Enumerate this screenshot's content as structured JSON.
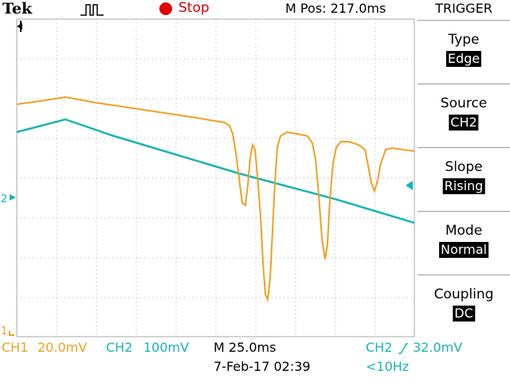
{
  "header": {
    "brand": "Tek",
    "acquisition_icon": "pulse-waveform-icon",
    "run_state": "Stop",
    "horizontal_position": "M Pos: 217.0ms"
  },
  "screen": {
    "trigger_position_icon": "trigger-position-arrow-icon",
    "ch1_marker": "1",
    "ch2_marker": "2",
    "trigger_level_icon": "trigger-level-arrow-icon"
  },
  "trigger_menu": {
    "title": "TRIGGER",
    "items": [
      {
        "label": "Type",
        "value": "Edge"
      },
      {
        "label": "Source",
        "value": "CH2"
      },
      {
        "label": "Slope",
        "value": "Rising"
      },
      {
        "label": "Mode",
        "value": "Normal"
      },
      {
        "label": "Coupling",
        "value": "DC"
      }
    ]
  },
  "footer": {
    "ch1_name": "CH1",
    "ch1_scale": "20.0mV",
    "ch2_name": "CH2",
    "ch2_scale": "100mV",
    "timebase": "M 25.0ms",
    "datetime": "7-Feb-17 02:39",
    "trigger_readout": "CH2",
    "trigger_slope_icon": "rising-edge-icon",
    "trigger_level": "32.0mV",
    "trigger_frequency": "<10Hz"
  },
  "colors": {
    "ch1": "#f0a020",
    "ch2": "#18b4b4",
    "stop": "#e00000",
    "grid": "#b0b0b0"
  }
}
